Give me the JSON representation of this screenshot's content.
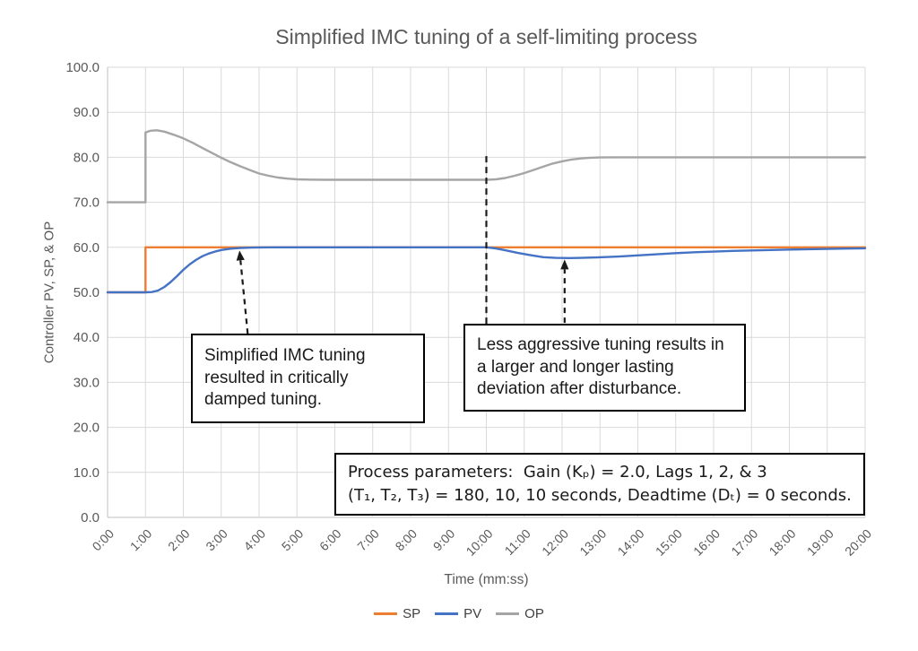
{
  "chart_data": {
    "type": "line",
    "title": "Simplified IMC tuning of a self-limiting process",
    "xlabel": "Time (mm:ss)",
    "ylabel": "Controller PV, SP, & OP",
    "ylim": [
      0,
      100
    ],
    "xlim_seconds": [
      0,
      1200
    ],
    "grid": true,
    "legend_position": "bottom",
    "ytick_labels": [
      "0.0",
      "10.0",
      "20.0",
      "30.0",
      "40.0",
      "50.0",
      "60.0",
      "70.0",
      "80.0",
      "90.0",
      "100.0"
    ],
    "xtick_labels": [
      "0:00",
      "1:00",
      "2:00",
      "3:00",
      "4:00",
      "5:00",
      "6:00",
      "7:00",
      "8:00",
      "9:00",
      "10:00",
      "11:00",
      "12:00",
      "13:00",
      "14:00",
      "15:00",
      "16:00",
      "17:00",
      "18:00",
      "19:00",
      "20:00"
    ],
    "colors": {
      "grid": "#D9D9D9",
      "axis": "#BFBFBF",
      "text": "#595959",
      "annotation": "#1a1a1a"
    },
    "series": [
      {
        "name": "SP",
        "color": "#ED7D31",
        "points": [
          [
            0,
            50
          ],
          [
            60,
            50
          ],
          [
            60,
            60
          ],
          [
            1200,
            60
          ]
        ]
      },
      {
        "name": "PV",
        "color": "#4472C4",
        "points": [
          [
            0,
            50
          ],
          [
            60,
            50
          ],
          [
            70,
            50.05
          ],
          [
            80,
            50.4
          ],
          [
            90,
            51.2
          ],
          [
            100,
            52.3
          ],
          [
            110,
            53.6
          ],
          [
            120,
            55.0
          ],
          [
            130,
            56.2
          ],
          [
            140,
            57.2
          ],
          [
            150,
            58.0
          ],
          [
            160,
            58.6
          ],
          [
            170,
            59.05
          ],
          [
            180,
            59.4
          ],
          [
            195,
            59.7
          ],
          [
            210,
            59.85
          ],
          [
            230,
            59.95
          ],
          [
            260,
            60
          ],
          [
            600,
            60
          ],
          [
            615,
            59.75
          ],
          [
            630,
            59.35
          ],
          [
            650,
            58.75
          ],
          [
            670,
            58.25
          ],
          [
            690,
            57.8
          ],
          [
            710,
            57.65
          ],
          [
            730,
            57.6
          ],
          [
            750,
            57.65
          ],
          [
            775,
            57.75
          ],
          [
            810,
            57.95
          ],
          [
            840,
            58.2
          ],
          [
            870,
            58.45
          ],
          [
            900,
            58.7
          ],
          [
            930,
            58.9
          ],
          [
            960,
            59.05
          ],
          [
            990,
            59.2
          ],
          [
            1020,
            59.3
          ],
          [
            1050,
            59.4
          ],
          [
            1080,
            59.5
          ],
          [
            1110,
            59.58
          ],
          [
            1140,
            59.65
          ],
          [
            1170,
            59.72
          ],
          [
            1200,
            59.78
          ]
        ]
      },
      {
        "name": "OP",
        "color": "#A5A5A5",
        "points": [
          [
            0,
            70
          ],
          [
            60,
            70
          ],
          [
            60,
            85.5
          ],
          [
            68,
            85.9
          ],
          [
            78,
            86
          ],
          [
            90,
            85.7
          ],
          [
            105,
            85
          ],
          [
            120,
            84.2
          ],
          [
            135,
            83.2
          ],
          [
            150,
            82.1
          ],
          [
            165,
            81.0
          ],
          [
            180,
            79.9
          ],
          [
            195,
            78.9
          ],
          [
            210,
            78.0
          ],
          [
            225,
            77.2
          ],
          [
            240,
            76.4
          ],
          [
            255,
            75.9
          ],
          [
            270,
            75.5
          ],
          [
            285,
            75.25
          ],
          [
            300,
            75.1
          ],
          [
            320,
            75.03
          ],
          [
            345,
            75
          ],
          [
            600,
            75
          ],
          [
            615,
            75.1
          ],
          [
            630,
            75.4
          ],
          [
            645,
            75.9
          ],
          [
            660,
            76.5
          ],
          [
            675,
            77.2
          ],
          [
            690,
            77.9
          ],
          [
            705,
            78.6
          ],
          [
            720,
            79.1
          ],
          [
            735,
            79.5
          ],
          [
            750,
            79.75
          ],
          [
            765,
            79.9
          ],
          [
            780,
            79.97
          ],
          [
            800,
            80
          ],
          [
            1200,
            80
          ]
        ]
      }
    ],
    "draw_order": [
      "SP",
      "OP",
      "PV"
    ],
    "annotations": {
      "disturbance_line": {
        "t": 600,
        "v_from": 43.0,
        "v_to": 80.7
      },
      "arrows": [
        {
          "from_t": 222,
          "from_v": 40.8,
          "to_t": 209,
          "to_v": 59.3
        },
        {
          "from_t": 724,
          "from_v": 43.2,
          "to_t": 724,
          "to_v": 57.3
        }
      ],
      "callout1": {
        "text": "Simplified IMC tuning resulted in critically damped tuning."
      },
      "callout2": {
        "text": "Less aggressive tuning results in a larger and longer lasting deviation after disturbance."
      },
      "params_box": {
        "line1": "Process parameters:  Gain (Kₚ) = 2.0, Lags 1, 2, & 3",
        "line2": "(T₁, T₂, T₃) = 180, 10, 10 seconds, Deadtime (Dₜ) = 0 seconds."
      }
    }
  }
}
